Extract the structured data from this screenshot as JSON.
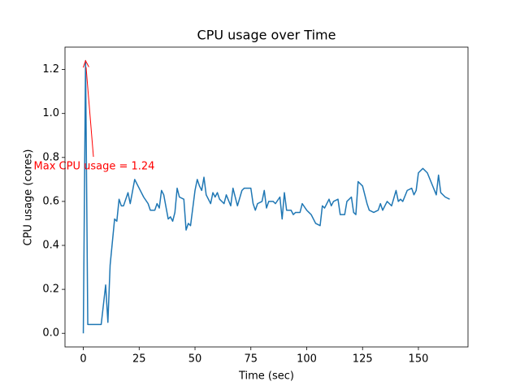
{
  "chart_data": {
    "type": "line",
    "title": "CPU usage over Time",
    "xlabel": "Time (sec)",
    "ylabel": "CPU usage (cores)",
    "annotation": "Max CPU usage = 1.24",
    "annotation_color": "#ff0000",
    "x": [
      0,
      1,
      2,
      4,
      6,
      8,
      10,
      11,
      12,
      14,
      15,
      16,
      17,
      18,
      20,
      21,
      23,
      25,
      27,
      29,
      30,
      32,
      33,
      34,
      35,
      36,
      38,
      39,
      40,
      41,
      42,
      43,
      45,
      46,
      47,
      48,
      50,
      51,
      52,
      53,
      54,
      55,
      57,
      58,
      59,
      60,
      61,
      63,
      64,
      66,
      67,
      69,
      71,
      72,
      75,
      76,
      77,
      78,
      80,
      81,
      82,
      83,
      85,
      86,
      88,
      89,
      90,
      91,
      93,
      94,
      95,
      97,
      98,
      100,
      101,
      102,
      104,
      106,
      107,
      108,
      110,
      111,
      112,
      114,
      115,
      117,
      118,
      120,
      121,
      122,
      123,
      125,
      127,
      128,
      130,
      132,
      133,
      134,
      136,
      137,
      138,
      140,
      141,
      142,
      143,
      145,
      147,
      148,
      149,
      150,
      152,
      154,
      156,
      158,
      159,
      160,
      162,
      164
    ],
    "series": [
      {
        "name": "CPU usage",
        "color": "#1f77b4",
        "values": [
          0.0,
          1.24,
          0.04,
          0.04,
          0.04,
          0.04,
          0.22,
          0.05,
          0.31,
          0.52,
          0.51,
          0.61,
          0.58,
          0.58,
          0.64,
          0.59,
          0.7,
          0.66,
          0.62,
          0.59,
          0.56,
          0.56,
          0.59,
          0.57,
          0.65,
          0.63,
          0.52,
          0.53,
          0.51,
          0.55,
          0.66,
          0.62,
          0.61,
          0.47,
          0.5,
          0.49,
          0.65,
          0.7,
          0.67,
          0.65,
          0.71,
          0.63,
          0.59,
          0.64,
          0.62,
          0.64,
          0.61,
          0.59,
          0.63,
          0.58,
          0.66,
          0.58,
          0.65,
          0.66,
          0.66,
          0.59,
          0.56,
          0.59,
          0.6,
          0.65,
          0.57,
          0.6,
          0.6,
          0.59,
          0.62,
          0.52,
          0.64,
          0.56,
          0.56,
          0.54,
          0.55,
          0.55,
          0.59,
          0.56,
          0.55,
          0.54,
          0.5,
          0.49,
          0.58,
          0.57,
          0.61,
          0.58,
          0.6,
          0.61,
          0.54,
          0.54,
          0.6,
          0.62,
          0.55,
          0.54,
          0.69,
          0.67,
          0.59,
          0.56,
          0.55,
          0.56,
          0.59,
          0.56,
          0.6,
          0.59,
          0.58,
          0.65,
          0.6,
          0.61,
          0.6,
          0.65,
          0.66,
          0.63,
          0.65,
          0.73,
          0.75,
          0.73,
          0.68,
          0.63,
          0.72,
          0.64,
          0.62,
          0.61
        ]
      }
    ],
    "xlim": [
      -8.2,
      172.2
    ],
    "ylim": [
      -0.062,
      1.302
    ],
    "xticks": [
      0,
      25,
      50,
      75,
      100,
      125,
      150
    ],
    "yticks": [
      {
        "value": 0.0,
        "label": "0.0"
      },
      0.2,
      0.4,
      0.6,
      0.8,
      {
        "value": 1.0,
        "label": "1.0"
      },
      1.2
    ]
  }
}
